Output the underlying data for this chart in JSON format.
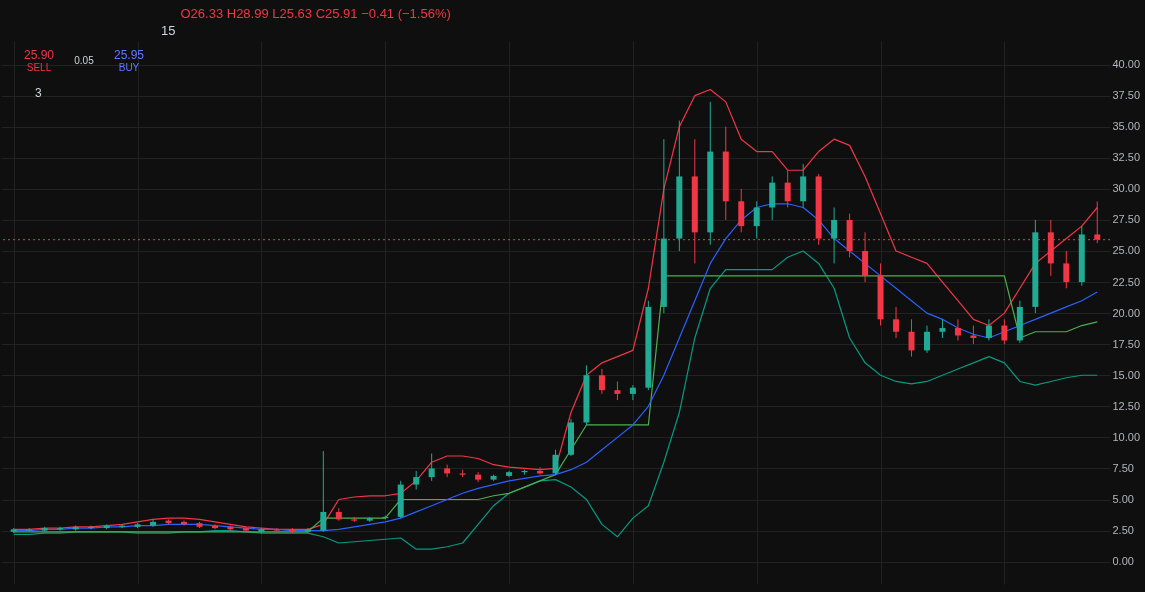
{
  "chart_data": {
    "type": "candlestick",
    "title": "O26.33 H28.99 L25.63 C25.91 −0.41 (−1.56%)",
    "annotations": [
      "15",
      "25.90",
      "SELL",
      "0.05",
      "25.95",
      "BUY",
      "3"
    ],
    "categories": [
      null,
      null,
      null,
      null,
      null,
      null,
      null,
      null,
      null,
      null,
      null,
      null,
      null,
      null,
      null,
      null,
      null,
      null,
      null,
      null,
      null,
      null,
      null,
      null,
      null,
      null,
      null,
      null,
      null,
      null,
      null,
      null,
      null,
      null,
      null,
      null,
      null,
      null,
      null,
      null,
      null,
      null,
      null,
      null,
      null,
      null,
      null,
      null,
      null,
      null,
      null,
      null,
      null,
      null,
      null,
      null,
      null,
      null,
      null,
      null,
      null,
      null,
      null,
      null,
      null,
      null,
      null,
      null,
      null,
      null,
      null
    ],
    "ohlc": [
      [
        2.4,
        2.7,
        2.3,
        2.6
      ],
      [
        2.5,
        2.7,
        2.4,
        2.6
      ],
      [
        2.5,
        2.8,
        2.4,
        2.7
      ],
      [
        2.6,
        2.8,
        2.5,
        2.7
      ],
      [
        2.6,
        2.9,
        2.5,
        2.8
      ],
      [
        2.7,
        2.9,
        2.6,
        2.8
      ],
      [
        2.7,
        3.0,
        2.6,
        2.9
      ],
      [
        2.8,
        3.0,
        2.7,
        2.9
      ],
      [
        2.8,
        3.1,
        2.7,
        3.0
      ],
      [
        2.9,
        3.4,
        2.8,
        3.2
      ],
      [
        3.3,
        3.4,
        3.0,
        3.1
      ],
      [
        3.2,
        3.3,
        2.9,
        3.0
      ],
      [
        3.1,
        3.2,
        2.7,
        2.8
      ],
      [
        2.9,
        3.0,
        2.6,
        2.7
      ],
      [
        2.8,
        2.9,
        2.5,
        2.6
      ],
      [
        2.7,
        2.8,
        2.4,
        2.5
      ],
      [
        2.4,
        2.7,
        2.3,
        2.6
      ],
      [
        2.6,
        2.7,
        2.4,
        2.5
      ],
      [
        2.6,
        2.7,
        2.3,
        2.4
      ],
      [
        2.4,
        2.7,
        2.3,
        2.6
      ],
      [
        2.5,
        8.9,
        2.4,
        4.0
      ],
      [
        4.0,
        4.3,
        3.3,
        3.4
      ],
      [
        3.4,
        3.6,
        3.2,
        3.3
      ],
      [
        3.3,
        3.6,
        3.2,
        3.5
      ],
      [
        3.5,
        3.7,
        3.4,
        3.6
      ],
      [
        3.6,
        6.5,
        3.5,
        6.2
      ],
      [
        6.2,
        7.3,
        5.8,
        6.8
      ],
      [
        6.8,
        8.7,
        6.5,
        7.5
      ],
      [
        7.5,
        7.8,
        6.8,
        7.1
      ],
      [
        7.1,
        7.4,
        6.8,
        7.0
      ],
      [
        7.0,
        7.2,
        6.4,
        6.6
      ],
      [
        6.6,
        7.0,
        6.5,
        6.9
      ],
      [
        6.9,
        7.3,
        6.8,
        7.2
      ],
      [
        7.2,
        7.4,
        7.0,
        7.3
      ],
      [
        7.3,
        7.6,
        7.0,
        7.1
      ],
      [
        7.1,
        9.0,
        7.0,
        8.6
      ],
      [
        8.6,
        11.5,
        8.5,
        11.2
      ],
      [
        11.2,
        15.8,
        11.0,
        15.0
      ],
      [
        15.0,
        15.5,
        13.5,
        13.8
      ],
      [
        13.8,
        14.5,
        13.0,
        13.5
      ],
      [
        13.5,
        14.2,
        13.0,
        14.0
      ],
      [
        14.0,
        21.0,
        13.8,
        20.5
      ],
      [
        20.5,
        34.0,
        20.0,
        26.0
      ],
      [
        26.0,
        35.5,
        25.0,
        31.0
      ],
      [
        31.0,
        34.0,
        24.0,
        26.5
      ],
      [
        26.5,
        37.0,
        25.5,
        33.0
      ],
      [
        33.0,
        35.0,
        27.5,
        29.0
      ],
      [
        29.0,
        30.0,
        26.5,
        27.0
      ],
      [
        27.0,
        29.0,
        26.0,
        28.5
      ],
      [
        28.5,
        31.0,
        27.5,
        30.5
      ],
      [
        30.5,
        31.5,
        28.5,
        29.0
      ],
      [
        29.0,
        32.0,
        28.5,
        31.0
      ],
      [
        31.0,
        31.2,
        25.5,
        26.0
      ],
      [
        26.0,
        28.5,
        24.0,
        27.5
      ],
      [
        27.5,
        28.0,
        24.5,
        25.0
      ],
      [
        25.0,
        26.5,
        22.5,
        23.0
      ],
      [
        23.0,
        24.0,
        19.0,
        19.5
      ],
      [
        19.5,
        20.5,
        18.0,
        18.5
      ],
      [
        18.5,
        19.5,
        16.5,
        17.0
      ],
      [
        17.0,
        19.0,
        16.8,
        18.5
      ],
      [
        18.5,
        19.5,
        18.0,
        18.8
      ],
      [
        18.8,
        19.5,
        17.8,
        18.2
      ],
      [
        18.2,
        19.0,
        17.5,
        18.0
      ],
      [
        18.0,
        19.5,
        17.8,
        19.0
      ],
      [
        19.0,
        19.5,
        17.5,
        17.8
      ],
      [
        17.8,
        21.0,
        17.6,
        20.5
      ],
      [
        20.5,
        27.5,
        20.0,
        26.5
      ],
      [
        26.5,
        27.5,
        23.0,
        24.0
      ],
      [
        24.0,
        25.0,
        22.0,
        22.5
      ],
      [
        22.5,
        27.0,
        22.2,
        26.33
      ],
      [
        26.33,
        28.99,
        25.63,
        25.91
      ]
    ],
    "colors": [
      "#22ab94",
      "#22ab94",
      "#22ab94",
      "#22ab94",
      "#22ab94",
      "#22ab94",
      "#22ab94",
      "#22ab94",
      "#22ab94",
      "#22ab94",
      "#f23645",
      "#f23645",
      "#f23645",
      "#f23645",
      "#f23645",
      "#f23645",
      "#22ab94",
      "#f23645",
      "#f23645",
      "#22ab94",
      "#22ab94",
      "#f23645",
      "#f23645",
      "#22ab94",
      "#22ab94",
      "#22ab94",
      "#22ab94",
      "#22ab94",
      "#f23645",
      "#f23645",
      "#f23645",
      "#22ab94",
      "#22ab94",
      "#22ab94",
      "#f23645",
      "#22ab94",
      "#22ab94",
      "#22ab94",
      "#f23645",
      "#f23645",
      "#22ab94",
      "#22ab94",
      "#22ab94",
      "#22ab94",
      "#f23645",
      "#22ab94",
      "#f23645",
      "#f23645",
      "#22ab94",
      "#22ab94",
      "#f23645",
      "#22ab94",
      "#f23645",
      "#22ab94",
      "#f23645",
      "#f23645",
      "#f23645",
      "#f23645",
      "#f23645",
      "#22ab94",
      "#22ab94",
      "#f23645",
      "#f23645",
      "#22ab94",
      "#f23645",
      "#22ab94",
      "#22ab94",
      "#f23645",
      "#f23645",
      "#22ab94",
      "#f23645"
    ],
    "series": [
      {
        "type": "line",
        "color": "#f23645",
        "values": [
          2.6,
          2.6,
          2.7,
          2.7,
          2.8,
          2.8,
          2.9,
          3.0,
          3.2,
          3.4,
          3.5,
          3.5,
          3.4,
          3.2,
          3.0,
          2.8,
          2.7,
          2.6,
          2.6,
          2.6,
          3.0,
          5.0,
          5.2,
          5.3,
          5.3,
          5.5,
          6.5,
          8.0,
          8.5,
          8.5,
          8.3,
          7.8,
          7.6,
          7.5,
          7.4,
          7.5,
          12.0,
          15.0,
          16.0,
          16.5,
          17.0,
          22.0,
          30.0,
          35.0,
          37.5,
          38.0,
          37.0,
          34.0,
          33.0,
          33.0,
          31.5,
          31.5,
          33.0,
          34.0,
          33.5,
          31.0,
          28.0,
          25.0,
          24.5,
          24.0,
          22.5,
          21.0,
          19.5,
          19.0,
          20.0,
          22.0,
          24.0,
          25.0,
          26.0,
          27.0,
          28.5
        ]
      },
      {
        "type": "line",
        "color": "#089981",
        "values": [
          2.2,
          2.2,
          2.3,
          2.3,
          2.4,
          2.4,
          2.4,
          2.4,
          2.3,
          2.3,
          2.3,
          2.4,
          2.4,
          2.5,
          2.5,
          2.4,
          2.3,
          2.3,
          2.3,
          2.3,
          2.0,
          1.5,
          1.6,
          1.7,
          1.8,
          1.9,
          1.0,
          1.0,
          1.2,
          1.5,
          3.0,
          4.5,
          5.5,
          6.0,
          6.5,
          6.6,
          6.0,
          5.0,
          3.0,
          2.0,
          3.5,
          4.5,
          8.0,
          12.0,
          18.0,
          22.0,
          23.5,
          23.5,
          23.5,
          23.5,
          24.5,
          25.0,
          24.0,
          22.0,
          18.0,
          16.0,
          15.0,
          14.5,
          14.3,
          14.5,
          15.0,
          15.5,
          16.0,
          16.5,
          16.0,
          14.5,
          14.2,
          14.5,
          14.8,
          15.0,
          15.0
        ]
      },
      {
        "type": "line",
        "color": "#4caf50",
        "values": [
          2.4,
          2.4,
          2.4,
          2.4,
          2.4,
          2.4,
          2.4,
          2.4,
          2.4,
          2.4,
          2.4,
          2.4,
          2.4,
          2.4,
          2.4,
          2.4,
          2.4,
          2.4,
          2.4,
          2.4,
          3.5,
          3.5,
          3.5,
          3.5,
          3.5,
          5.0,
          5.0,
          5.0,
          5.0,
          5.0,
          5.0,
          5.3,
          5.5,
          6.0,
          6.5,
          7.0,
          9.0,
          11.0,
          11.0,
          11.0,
          11.0,
          11.0,
          23.0,
          23.0,
          23.0,
          23.0,
          23.0,
          23.0,
          23.0,
          23.0,
          23.0,
          23.0,
          23.0,
          23.0,
          23.0,
          23.0,
          23.0,
          23.0,
          23.0,
          23.0,
          23.0,
          23.0,
          23.0,
          23.0,
          23.0,
          18.0,
          18.5,
          18.5,
          18.5,
          19.0,
          19.3
        ]
      },
      {
        "type": "line",
        "color": "#2962ff",
        "values": [
          2.5,
          2.5,
          2.6,
          2.6,
          2.7,
          2.7,
          2.8,
          2.8,
          2.9,
          2.9,
          3.0,
          3.0,
          3.0,
          2.9,
          2.8,
          2.7,
          2.6,
          2.6,
          2.5,
          2.5,
          2.5,
          2.6,
          2.8,
          3.0,
          3.2,
          3.5,
          4.0,
          4.5,
          5.0,
          5.5,
          5.9,
          6.2,
          6.5,
          6.7,
          6.9,
          7.0,
          7.4,
          8.0,
          9.0,
          10.0,
          11.0,
          12.5,
          15.0,
          18.0,
          21.0,
          24.0,
          26.0,
          27.5,
          28.5,
          28.8,
          28.8,
          28.5,
          27.5,
          26.0,
          25.0,
          24.0,
          23.0,
          22.0,
          21.0,
          20.0,
          19.5,
          18.8,
          18.3,
          18.0,
          18.5,
          19.0,
          19.5,
          20.0,
          20.5,
          21.0,
          21.7
        ]
      }
    ],
    "ref_lines": [
      {
        "axis": "y",
        "value": 25.91,
        "label": null,
        "color": "#f23645",
        "line_style": "dotted"
      }
    ],
    "ylim": [
      -1.8,
      41.9
    ],
    "yticks": [
      {
        "value": 0,
        "label": "0.00"
      },
      {
        "value": 2.5,
        "label": "2.50"
      },
      {
        "value": 5,
        "label": "5.00"
      },
      {
        "value": 7.5,
        "label": "7.50"
      },
      {
        "value": 10,
        "label": "10.00"
      },
      {
        "value": 12.5,
        "label": "12.50"
      },
      {
        "value": 15,
        "label": "15.00"
      },
      {
        "value": 17.5,
        "label": "17.50"
      },
      {
        "value": 20,
        "label": "20.00"
      },
      {
        "value": 22.5,
        "label": "22.50"
      },
      {
        "value": 25,
        "label": "25.00"
      },
      {
        "value": 27.5,
        "label": "27.50"
      },
      {
        "value": 30,
        "label": "30.00"
      },
      {
        "value": 32.5,
        "label": "32.50"
      },
      {
        "value": 35,
        "label": "35.00"
      },
      {
        "value": 37.5,
        "label": "37.50"
      },
      {
        "value": 40,
        "label": "40.00"
      }
    ],
    "tick_labels": "y",
    "grid": true
  }
}
